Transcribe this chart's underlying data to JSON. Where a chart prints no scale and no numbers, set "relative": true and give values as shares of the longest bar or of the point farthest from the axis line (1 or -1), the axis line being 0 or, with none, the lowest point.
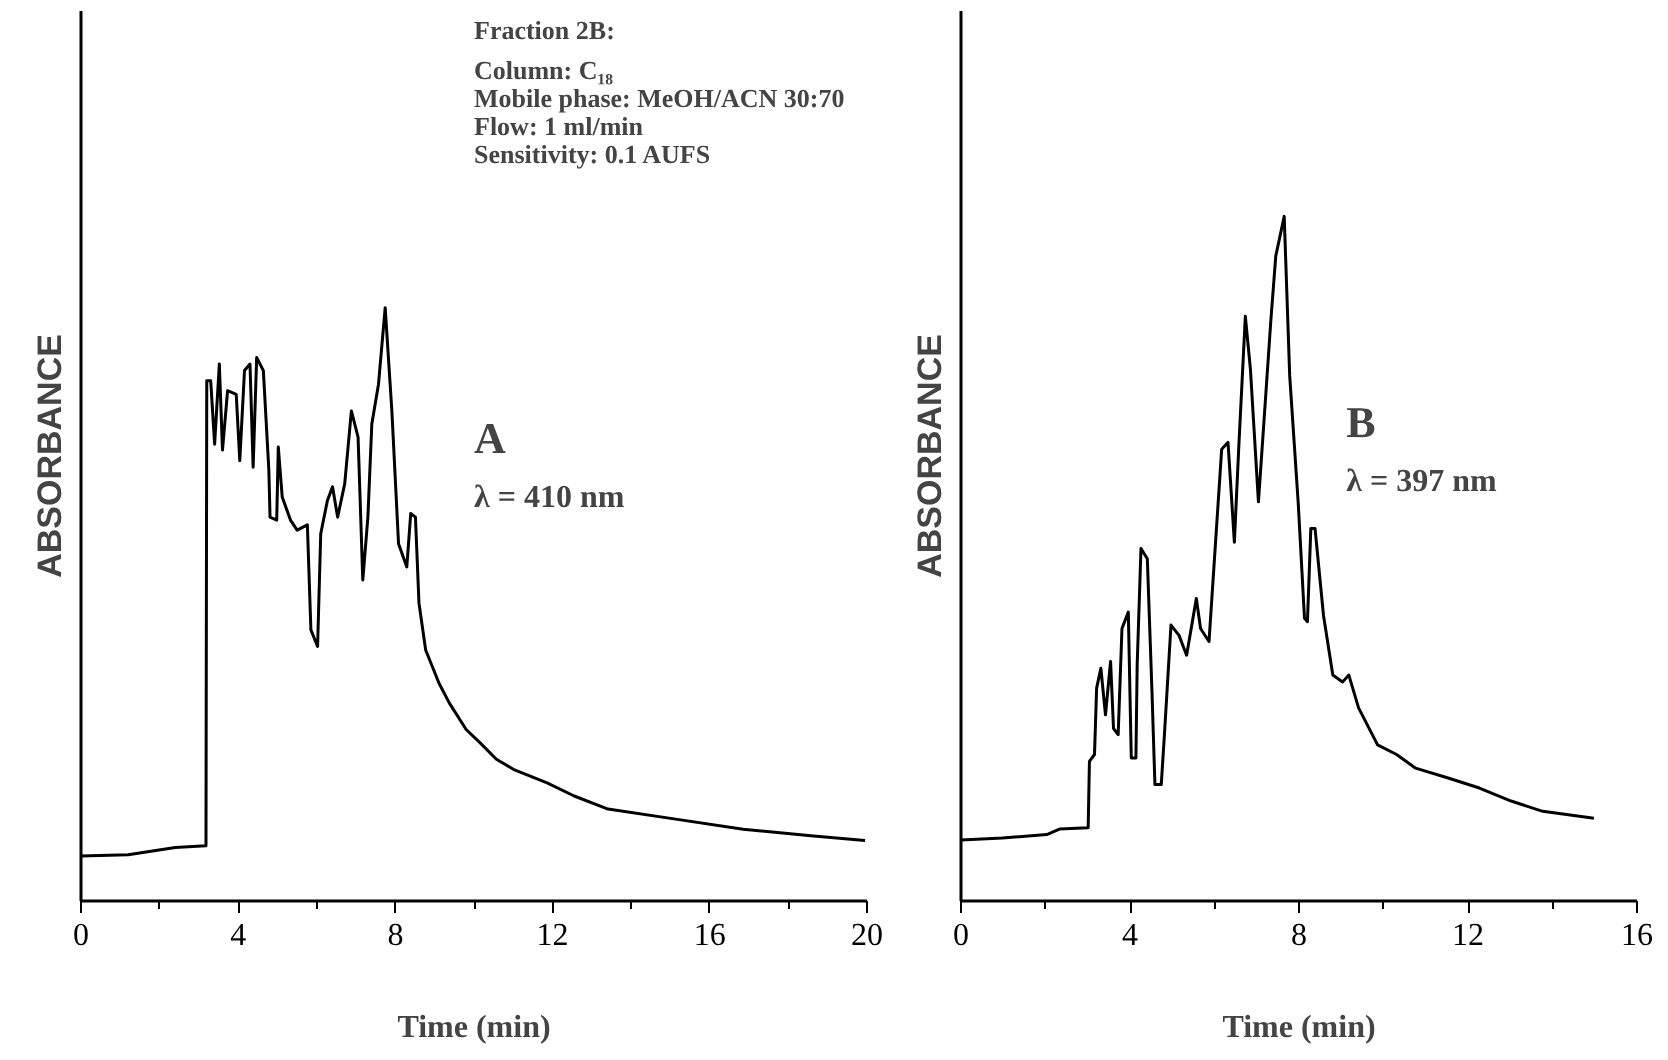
{
  "chart_data": [
    {
      "type": "line",
      "relative": true,
      "xlabel": "Time (min)",
      "ylabel": "ABSORBANCE",
      "xlim": [
        0,
        20
      ],
      "xticks": [
        0,
        4,
        8,
        12,
        16,
        20
      ],
      "grid": false,
      "marker": "none",
      "line_style": "solid",
      "annotations": [
        "Fraction 2B:",
        "Column: C₁₈",
        "Mobile phase: MeOH/ACN 30:70",
        "Flow: 1 ml/min",
        "Sensitivity: 0.1 AUFS",
        "A",
        "λ = 410 nm"
      ],
      "series": [
        {
          "color": "#000000",
          "x": [
            0,
            1.2,
            2.4,
            3.18,
            3.2,
            3.3,
            3.4,
            3.52,
            3.6,
            3.73,
            3.95,
            4.04,
            4.16,
            4.3,
            4.38,
            4.47,
            4.64,
            4.78,
            4.81,
            4.98,
            5.02,
            5.12,
            5.33,
            5.5,
            5.76,
            5.85,
            6.02,
            6.1,
            6.27,
            6.4,
            6.53,
            6.71,
            6.88,
            7.05,
            7.17,
            7.3,
            7.4,
            7.57,
            7.74,
            7.91,
            8.08,
            8.29,
            8.39,
            8.51,
            8.6,
            8.77,
            9.11,
            9.37,
            9.8,
            10.15,
            10.57,
            11.0,
            11.86,
            12.55,
            13.41,
            15.13,
            16.85,
            18.57,
            19.95
          ],
          "values": [
            0.076,
            0.078,
            0.09,
            0.093,
            0.877,
            0.877,
            0.77,
            0.905,
            0.76,
            0.86,
            0.854,
            0.742,
            0.894,
            0.905,
            0.731,
            0.916,
            0.894,
            0.726,
            0.647,
            0.642,
            0.765,
            0.681,
            0.642,
            0.625,
            0.634,
            0.457,
            0.429,
            0.619,
            0.675,
            0.698,
            0.647,
            0.703,
            0.826,
            0.782,
            0.541,
            0.647,
            0.804,
            0.871,
            1.0,
            0.826,
            0.602,
            0.563,
            0.653,
            0.647,
            0.502,
            0.423,
            0.367,
            0.334,
            0.289,
            0.267,
            0.239,
            0.222,
            0.199,
            0.177,
            0.155,
            0.138,
            0.121,
            0.11,
            0.102
          ]
        }
      ]
    },
    {
      "type": "line",
      "relative": true,
      "xlabel": "Time (min)",
      "ylabel": "ABSORBANCE",
      "xlim": [
        0,
        16
      ],
      "xticks": [
        0,
        4,
        8,
        12,
        16
      ],
      "grid": false,
      "marker": "none",
      "line_style": "solid",
      "annotations": [
        "B",
        "λ = 397 nm"
      ],
      "series": [
        {
          "color": "#000000",
          "x": [
            0,
            0.98,
            2.03,
            2.33,
            3.01,
            3.04,
            3.16,
            3.21,
            3.31,
            3.42,
            3.54,
            3.61,
            3.72,
            3.81,
            3.96,
            4.03,
            4.14,
            4.17,
            4.26,
            4.41,
            4.52,
            4.59,
            4.74,
            4.82,
            4.97,
            5.16,
            5.34,
            5.57,
            5.67,
            5.87,
            6.17,
            6.32,
            6.47,
            6.58,
            6.73,
            6.85,
            7.04,
            7.18,
            7.33,
            7.45,
            7.65,
            7.78,
            7.98,
            8.13,
            8.2,
            8.28,
            8.38,
            8.58,
            8.8,
            9.03,
            9.18,
            9.41,
            9.86,
            10.31,
            10.76,
            11.51,
            12.27,
            13.02,
            13.77,
            14.98
          ],
          "values": [
            0.089,
            0.092,
            0.097,
            0.105,
            0.107,
            0.204,
            0.214,
            0.311,
            0.34,
            0.272,
            0.35,
            0.252,
            0.243,
            0.398,
            0.422,
            0.209,
            0.209,
            0.345,
            0.515,
            0.5,
            0.306,
            0.17,
            0.17,
            0.248,
            0.403,
            0.388,
            0.359,
            0.442,
            0.398,
            0.379,
            0.66,
            0.67,
            0.524,
            0.67,
            0.854,
            0.777,
            0.583,
            0.709,
            0.845,
            0.942,
            1.0,
            0.767,
            0.583,
            0.413,
            0.408,
            0.544,
            0.544,
            0.417,
            0.33,
            0.32,
            0.33,
            0.282,
            0.228,
            0.214,
            0.194,
            0.18,
            0.165,
            0.146,
            0.131,
            0.121
          ]
        }
      ]
    }
  ]
}
